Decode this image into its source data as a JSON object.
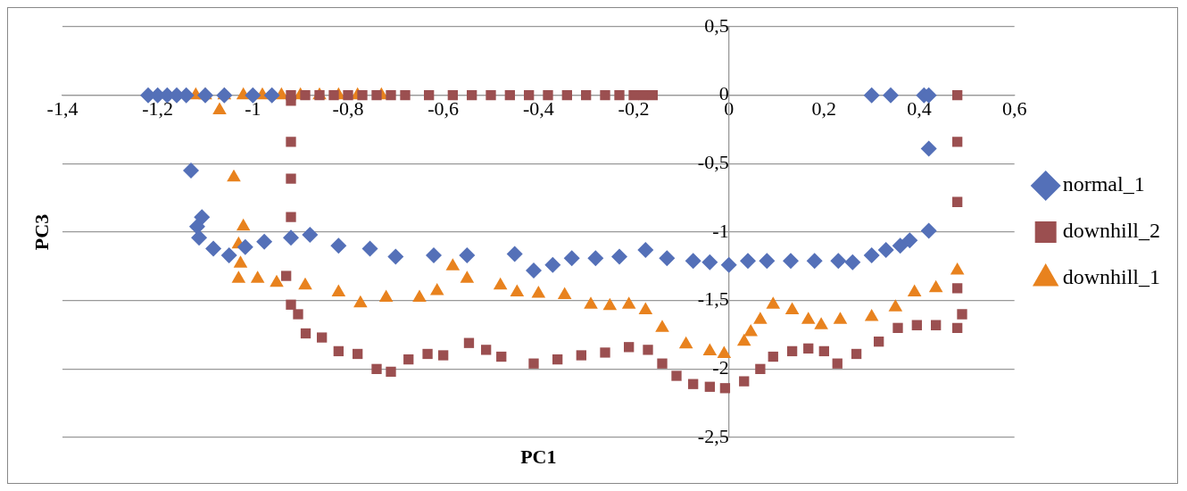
{
  "chart_data": {
    "type": "scatter",
    "xlabel": "PC1",
    "ylabel": "PC3",
    "xlim": [
      -1.4,
      0.6
    ],
    "ylim": [
      -2.5,
      0.5
    ],
    "xticks": [
      {
        "value": -1.4,
        "label": "-1,4"
      },
      {
        "value": -1.2,
        "label": "-1,2"
      },
      -1,
      {
        "value": -0.8,
        "label": "-0,8"
      },
      {
        "value": -0.6,
        "label": "-0,6"
      },
      {
        "value": -0.4,
        "label": "-0,4"
      },
      {
        "value": -0.2,
        "label": "-0,2"
      },
      0,
      {
        "value": 0.2,
        "label": "0,2"
      },
      {
        "value": 0.4,
        "label": "0,4"
      },
      {
        "value": 0.6,
        "label": "0,6"
      }
    ],
    "yticks": [
      {
        "value": 0.5,
        "label": "0,5"
      },
      0,
      {
        "value": -0.5,
        "label": "-0,5"
      },
      -1,
      {
        "value": -1.5,
        "label": "-1,5"
      },
      -2,
      {
        "value": -2.5,
        "label": "-2,5"
      }
    ],
    "grid": "y",
    "legend": "right",
    "series": [
      {
        "name": "normal_1",
        "color": "#5470b8",
        "marker": "diamond",
        "x": [
          -1.22,
          -1.2,
          -1.18,
          -1.16,
          -1.14,
          -1.1,
          -1.06,
          -1.0,
          -0.96,
          -1.13,
          -1.107,
          -1.117,
          -1.113,
          -1.083,
          -1.05,
          -1.016,
          -0.976,
          -0.92,
          -0.88,
          -0.82,
          -0.754,
          -0.7,
          -0.62,
          -0.55,
          -0.45,
          -0.41,
          -0.37,
          -0.33,
          -0.28,
          -0.23,
          -0.175,
          -0.13,
          -0.075,
          -0.04,
          0.0,
          0.04,
          0.08,
          0.13,
          0.18,
          0.23,
          0.26,
          0.3,
          0.33,
          0.36,
          0.38,
          0.42,
          0.42,
          0.3,
          0.34,
          0.41,
          0.42
        ],
        "values": [
          0,
          0,
          0,
          0,
          0,
          0,
          0,
          0,
          0,
          -0.55,
          -0.89,
          -0.96,
          -1.04,
          -1.12,
          -1.17,
          -1.11,
          -1.07,
          -1.04,
          -1.02,
          -1.1,
          -1.12,
          -1.18,
          -1.17,
          -1.17,
          -1.16,
          -1.28,
          -1.24,
          -1.19,
          -1.19,
          -1.18,
          -1.13,
          -1.19,
          -1.21,
          -1.22,
          -1.24,
          -1.21,
          -1.21,
          -1.21,
          -1.21,
          -1.21,
          -1.22,
          -1.17,
          -1.13,
          -1.1,
          -1.06,
          -0.99,
          -0.39,
          0,
          0,
          0,
          0
        ]
      },
      {
        "name": "downhill_2",
        "color": "#9b4f50",
        "marker": "square",
        "x": [
          -0.92,
          -0.89,
          -0.86,
          -0.83,
          -0.8,
          -0.77,
          -0.74,
          -0.71,
          -0.68,
          -0.63,
          -0.58,
          -0.54,
          -0.5,
          -0.46,
          -0.42,
          -0.38,
          -0.34,
          -0.3,
          -0.26,
          -0.23,
          -0.2,
          -0.18,
          -0.16,
          0.48,
          -0.92,
          -0.92,
          -0.92,
          -0.92,
          -0.93,
          -0.92,
          -0.905,
          -0.889,
          -0.855,
          -0.82,
          -0.78,
          -0.74,
          -0.71,
          -0.673,
          -0.633,
          -0.6,
          -0.546,
          -0.51,
          -0.478,
          -0.41,
          -0.36,
          -0.31,
          -0.26,
          -0.21,
          -0.17,
          -0.14,
          -0.11,
          -0.075,
          -0.04,
          -0.008,
          0.032,
          0.066,
          0.093,
          0.133,
          0.167,
          0.2,
          0.228,
          0.268,
          0.315,
          0.355,
          0.395,
          0.435,
          0.48,
          0.49,
          0.48,
          0.48,
          0.48
        ],
        "values": [
          0,
          0,
          0,
          0,
          0,
          0,
          0,
          0,
          0,
          0,
          0,
          0,
          0,
          0,
          0,
          0,
          0,
          0,
          0,
          0,
          0,
          0,
          0,
          0,
          -0.04,
          -0.34,
          -0.61,
          -0.89,
          -1.32,
          -1.53,
          -1.6,
          -1.74,
          -1.77,
          -1.87,
          -1.89,
          -2.0,
          -2.02,
          -1.93,
          -1.89,
          -1.9,
          -1.81,
          -1.86,
          -1.91,
          -1.96,
          -1.93,
          -1.9,
          -1.88,
          -1.84,
          -1.86,
          -1.96,
          -2.05,
          -2.11,
          -2.13,
          -2.14,
          -2.09,
          -2.0,
          -1.91,
          -1.87,
          -1.85,
          -1.87,
          -1.96,
          -1.89,
          -1.8,
          -1.7,
          -1.68,
          -1.68,
          -1.7,
          -1.6,
          -1.41,
          -0.78,
          -0.34
        ]
      },
      {
        "name": "downhill_1",
        "color": "#e8821e",
        "marker": "triangle",
        "x": [
          -1.12,
          -1.1,
          -1.06,
          -1.02,
          -0.98,
          -0.94,
          -0.9,
          -0.86,
          -0.82,
          -0.78,
          -0.73,
          -1.07,
          -1.04,
          -1.02,
          -1.03,
          -1.026,
          -1.03,
          -0.99,
          -0.95,
          -0.89,
          -0.82,
          -0.774,
          -0.72,
          -0.65,
          -0.613,
          -0.58,
          -0.55,
          -0.48,
          -0.445,
          -0.4,
          -0.345,
          -0.29,
          -0.25,
          -0.21,
          -0.175,
          -0.14,
          -0.09,
          -0.04,
          -0.01,
          0.032,
          0.046,
          0.066,
          0.093,
          0.133,
          0.167,
          0.194,
          0.234,
          0.3,
          0.35,
          0.39,
          0.435,
          0.48
        ],
        "values": [
          0,
          0,
          0,
          0,
          0,
          0,
          0,
          0,
          0,
          0,
          0,
          -0.11,
          -0.6,
          -0.96,
          -1.09,
          -1.23,
          -1.34,
          -1.34,
          -1.37,
          -1.39,
          -1.44,
          -1.52,
          -1.48,
          -1.48,
          -1.43,
          -1.25,
          -1.34,
          -1.39,
          -1.44,
          -1.45,
          -1.46,
          -1.53,
          -1.54,
          -1.53,
          -1.57,
          -1.7,
          -1.82,
          -1.87,
          -1.89,
          -1.8,
          -1.73,
          -1.64,
          -1.53,
          -1.57,
          -1.64,
          -1.68,
          -1.64,
          -1.62,
          -1.55,
          -1.44,
          -1.41,
          -1.28
        ]
      }
    ]
  }
}
